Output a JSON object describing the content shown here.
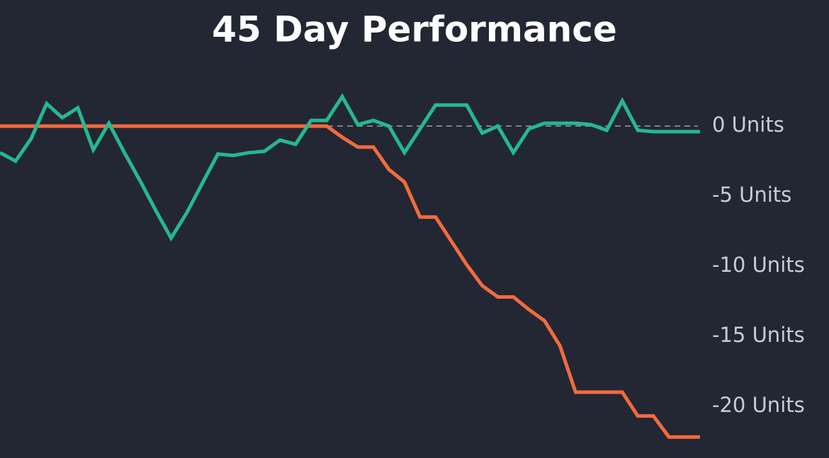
{
  "chart_data": {
    "type": "line",
    "title": "45 Day Performance",
    "categories": [
      null,
      null,
      null,
      null,
      null,
      null,
      null,
      null,
      null,
      null,
      null,
      null,
      null,
      null,
      null,
      null,
      null,
      null,
      null,
      null,
      null,
      null,
      null,
      null,
      null,
      null,
      null,
      null,
      null,
      null,
      null,
      null,
      null,
      null,
      null,
      null,
      null,
      null,
      null,
      null,
      null,
      null,
      null,
      null,
      null,
      null
    ],
    "series": [
      {
        "color": "#26b88f",
        "values": [
          -1.9,
          -2.5,
          -0.9,
          1.6,
          0.6,
          1.3,
          -1.7,
          0.2,
          -1.9,
          -3.9,
          -6.0,
          -8.0,
          -6.2,
          -4.1,
          -2.0,
          -2.1,
          -1.9,
          -1.8,
          -1.0,
          -1.3,
          0.4,
          0.4,
          2.1,
          0.1,
          0.4,
          0,
          -1.9,
          -0.2,
          1.5,
          1.5,
          1.5,
          -0.5,
          0,
          -1.9,
          -0.2,
          0.2,
          0.2,
          0.2,
          0.1,
          -0.3,
          1.8,
          -0.3,
          -0.4,
          -0.4,
          -0.4,
          -0.4
        ]
      },
      {
        "color": "#f26b3f",
        "values": [
          0,
          0,
          0,
          0,
          0,
          0,
          0,
          0,
          0,
          0,
          0,
          0,
          0,
          0,
          0,
          0,
          0,
          0,
          0,
          0,
          0,
          0,
          -0.8,
          -1.5,
          -1.5,
          -3.1,
          -4.0,
          -6.5,
          -6.5,
          -8.2,
          -9.9,
          -11.4,
          -12.2,
          -12.2,
          -13.1,
          -13.9,
          -15.7,
          -19.0,
          -19.0,
          -19.0,
          -19.0,
          -20.7,
          -20.7,
          -22.2,
          -22.2,
          -22.2
        ]
      }
    ],
    "ylim": [
      -23.7,
      9
    ],
    "yticks": [
      {
        "value": 0,
        "label": "0 Units"
      },
      {
        "value": -5,
        "label": "-5 Units"
      },
      {
        "value": -10,
        "label": "-10 Units"
      },
      {
        "value": -15,
        "label": "-15 Units"
      },
      {
        "value": -20,
        "label": "-20 Units"
      }
    ],
    "zero_line": true
  }
}
